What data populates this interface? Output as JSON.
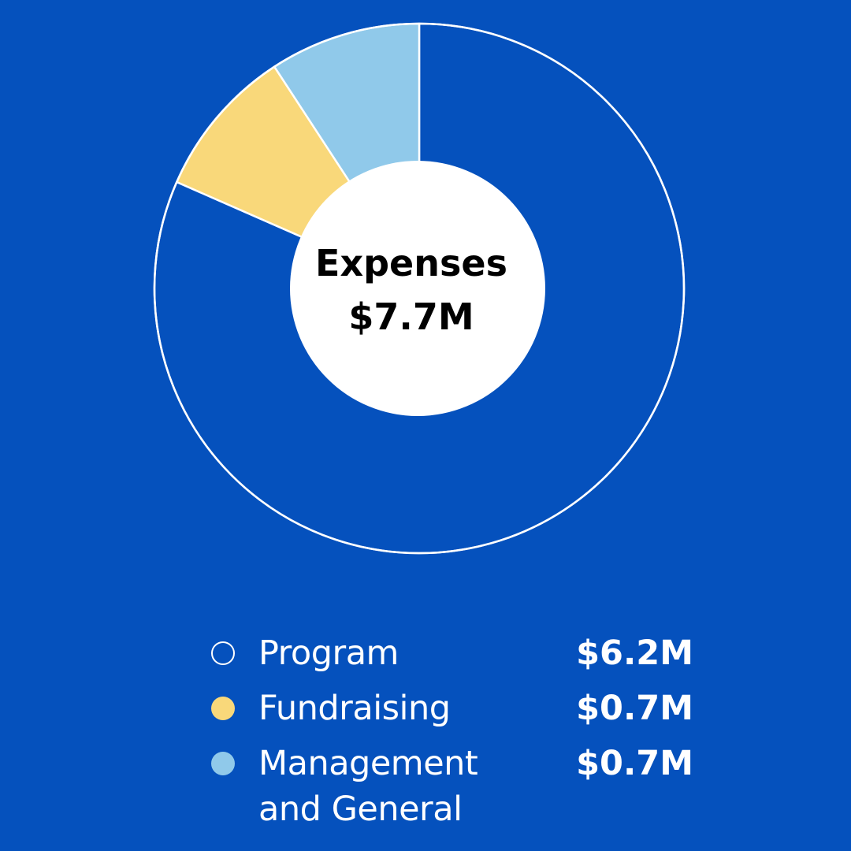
{
  "chart_data": {
    "type": "pie",
    "center_label": "Expenses",
    "center_value": "$7.7M",
    "slices": [
      {
        "label": "Program",
        "value": 6.2,
        "display_value": "$6.2M",
        "color": "#0551bd",
        "swatch_style": "outline"
      },
      {
        "label": "Fundraising",
        "value": 0.7,
        "display_value": "$0.7M",
        "color": "#f9d87a",
        "swatch_style": "fill"
      },
      {
        "label": "Management and General",
        "value": 0.7,
        "display_value": "$0.7M",
        "color": "#90c9ea",
        "swatch_style": "fill"
      }
    ],
    "legend_placement": "bottom"
  },
  "colors": {
    "background": "#0551bd",
    "ring_outline": "#ffffff",
    "center_fill": "#ffffff"
  }
}
